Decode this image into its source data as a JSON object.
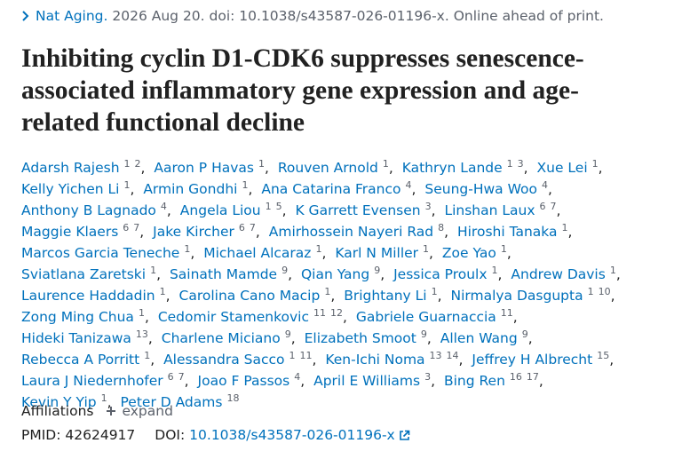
{
  "citation": {
    "journal": "Nat Aging.",
    "details": "2026 Aug 20. doi: 10.1038/s43587-026-01196-x. Online ahead of print."
  },
  "title": "Inhibiting cyclin D1-CDK6 suppresses senescence-associated inflammatory gene expression and age-related functional decline",
  "separator": ",",
  "authors": [
    {
      "name": "Adarsh Rajesh",
      "affiliations": [
        1,
        2
      ]
    },
    {
      "name": "Aaron P Havas",
      "affiliations": [
        1
      ]
    },
    {
      "name": "Rouven Arnold",
      "affiliations": [
        1
      ]
    },
    {
      "name": "Kathryn Lande",
      "affiliations": [
        1,
        3
      ]
    },
    {
      "name": "Xue Lei",
      "affiliations": [
        1
      ]
    },
    {
      "name": "Kelly Yichen Li",
      "affiliations": [
        1
      ]
    },
    {
      "name": "Armin Gondhi",
      "affiliations": [
        1
      ]
    },
    {
      "name": "Ana Catarina Franco",
      "affiliations": [
        4
      ]
    },
    {
      "name": "Seung-Hwa Woo",
      "affiliations": [
        4
      ]
    },
    {
      "name": "Anthony B Lagnado",
      "affiliations": [
        4
      ]
    },
    {
      "name": "Angela Liou",
      "affiliations": [
        1,
        5
      ]
    },
    {
      "name": "K Garrett Evensen",
      "affiliations": [
        3
      ]
    },
    {
      "name": "Linshan Laux",
      "affiliations": [
        6,
        7
      ]
    },
    {
      "name": "Maggie Klaers",
      "affiliations": [
        6,
        7
      ]
    },
    {
      "name": "Jake Kircher",
      "affiliations": [
        6,
        7
      ]
    },
    {
      "name": "Amirhossein Nayeri Rad",
      "affiliations": [
        8
      ]
    },
    {
      "name": "Hiroshi Tanaka",
      "affiliations": [
        1
      ]
    },
    {
      "name": "Marcos Garcia Teneche",
      "affiliations": [
        1
      ]
    },
    {
      "name": "Michael Alcaraz",
      "affiliations": [
        1
      ]
    },
    {
      "name": "Karl N Miller",
      "affiliations": [
        1
      ]
    },
    {
      "name": "Zoe Yao",
      "affiliations": [
        1
      ]
    },
    {
      "name": "Sviatlana Zaretski",
      "affiliations": [
        1
      ]
    },
    {
      "name": "Sainath Mamde",
      "affiliations": [
        9
      ]
    },
    {
      "name": "Qian Yang",
      "affiliations": [
        9
      ]
    },
    {
      "name": "Jessica Proulx",
      "affiliations": [
        1
      ]
    },
    {
      "name": "Andrew Davis",
      "affiliations": [
        1
      ]
    },
    {
      "name": "Laurence Haddadin",
      "affiliations": [
        1
      ]
    },
    {
      "name": "Carolina Cano Macip",
      "affiliations": [
        1
      ]
    },
    {
      "name": "Brightany Li",
      "affiliations": [
        1
      ]
    },
    {
      "name": "Nirmalya Dasgupta",
      "affiliations": [
        1,
        10
      ]
    },
    {
      "name": "Zong Ming Chua",
      "affiliations": [
        1
      ]
    },
    {
      "name": "Cedomir Stamenkovic",
      "affiliations": [
        11,
        12
      ]
    },
    {
      "name": "Gabriele Guarnaccia",
      "affiliations": [
        11
      ]
    },
    {
      "name": "Hideki Tanizawa",
      "affiliations": [
        13
      ]
    },
    {
      "name": "Charlene Miciano",
      "affiliations": [
        9
      ]
    },
    {
      "name": "Elizabeth Smoot",
      "affiliations": [
        9
      ]
    },
    {
      "name": "Allen Wang",
      "affiliations": [
        9
      ]
    },
    {
      "name": "Rebecca A Porritt",
      "affiliations": [
        1
      ]
    },
    {
      "name": "Alessandra Sacco",
      "affiliations": [
        1,
        11
      ]
    },
    {
      "name": "Ken-Ichi Noma",
      "affiliations": [
        13,
        14
      ]
    },
    {
      "name": "Jeffrey H Albrecht",
      "affiliations": [
        15
      ]
    },
    {
      "name": "Laura J Niedernhofer",
      "affiliations": [
        6,
        7
      ]
    },
    {
      "name": "Joao F Passos",
      "affiliations": [
        4
      ]
    },
    {
      "name": "April E Williams",
      "affiliations": [
        3
      ]
    },
    {
      "name": "Bing Ren",
      "affiliations": [
        16,
        17
      ]
    },
    {
      "name": "Kevin Y Yip",
      "affiliations": [
        1
      ]
    },
    {
      "name": "Peter D Adams",
      "affiliations": [
        18
      ]
    }
  ],
  "affiliations": {
    "label": "Affiliations",
    "toggle": "expand"
  },
  "identifiers": {
    "pmid_label": "PMID:",
    "pmid": "42624917",
    "doi_label": "DOI:",
    "doi": "10.1038/s43587-026-01196-x"
  }
}
